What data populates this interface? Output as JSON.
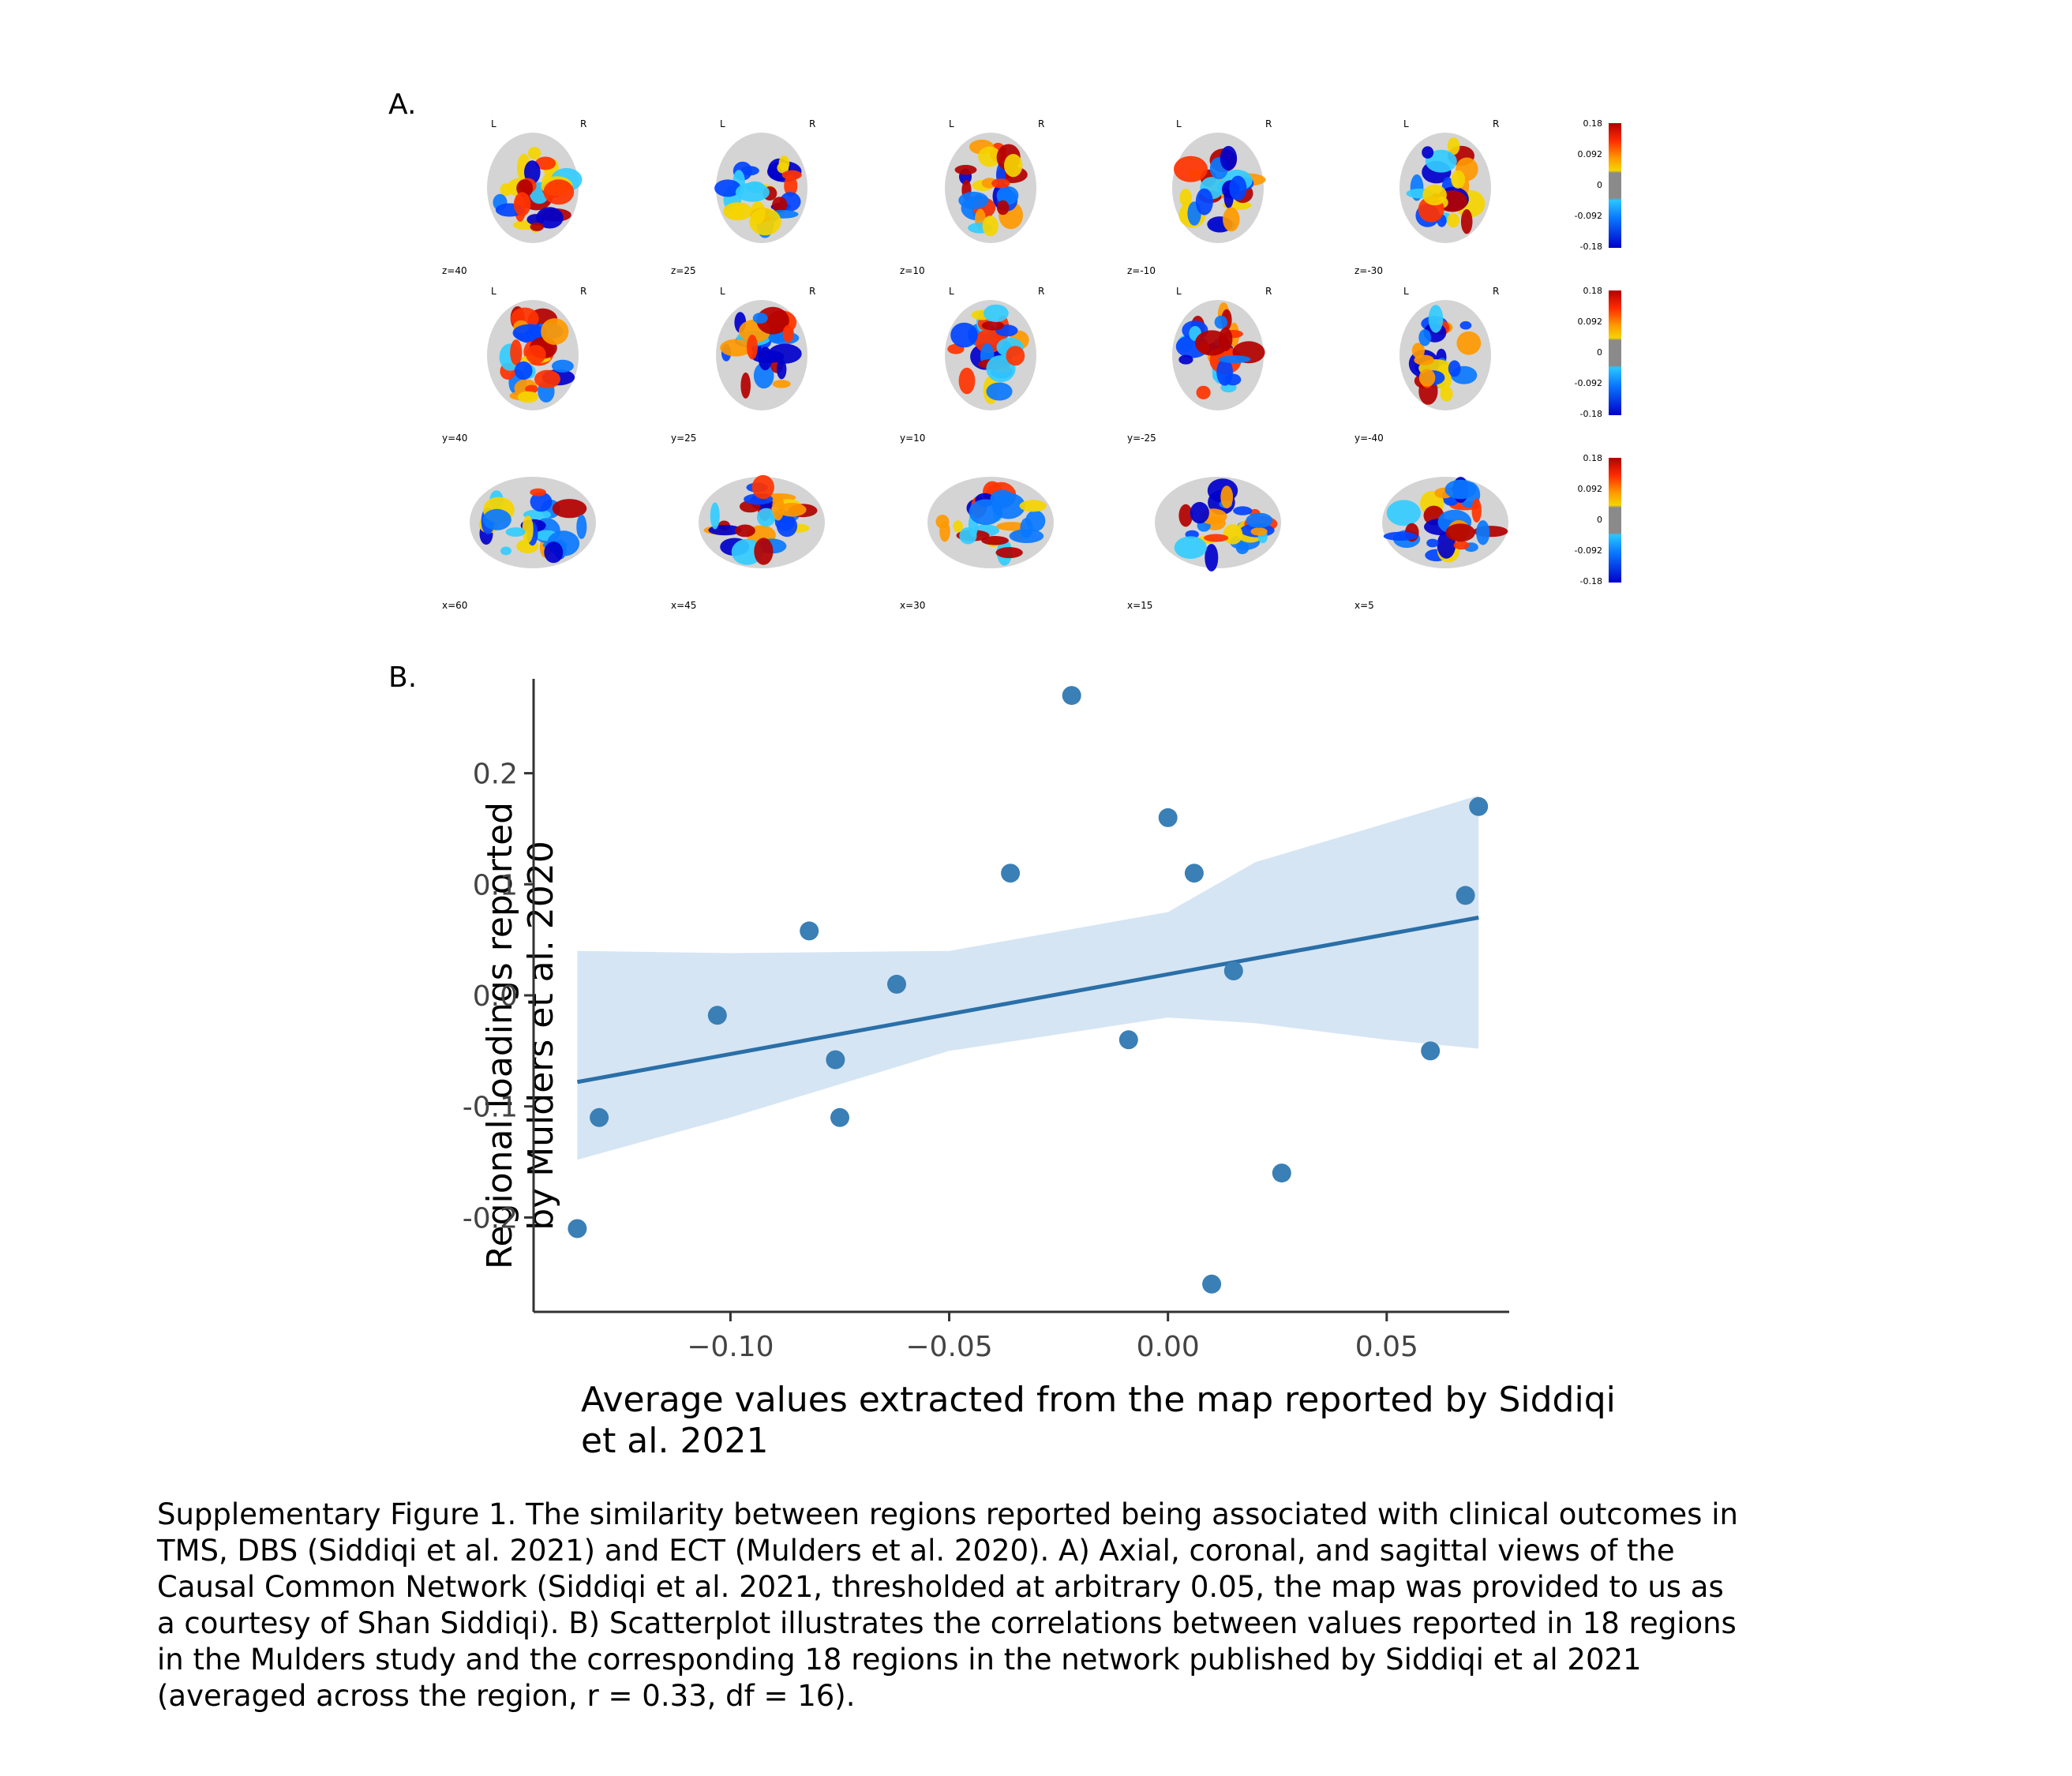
{
  "panel_a": {
    "label": "A.",
    "orientation_left": "L",
    "orientation_right": "R",
    "rows": [
      {
        "view": "axial",
        "slices": [
          "z=40",
          "z=25",
          "z=10",
          "z=-10",
          "z=-30"
        ]
      },
      {
        "view": "coronal",
        "slices": [
          "y=40",
          "y=25",
          "y=10",
          "y=-25",
          "y=-40"
        ]
      },
      {
        "view": "sagittal",
        "slices": [
          "x=60",
          "x=45",
          "x=30",
          "x=15",
          "x=5"
        ]
      }
    ],
    "colorbar_ticks": [
      "0.18",
      "0.092",
      "0",
      "-0.092",
      "-0.18"
    ],
    "colors": {
      "positive_high": "#b30000",
      "positive_mid": "#ff9900",
      "neutral": "#8a8a8a",
      "negative_mid": "#0a78ff",
      "negative_high": "#0000cc",
      "tissue": "#d4d4d4"
    }
  },
  "panel_b": {
    "label": "B.",
    "ylabel_line1": "Regional loadings reported",
    "ylabel_line2": "by Mulders et al. 2020",
    "xlabel_line1": "Average values extracted from the map reported by Siddiqi",
    "xlabel_line2": "et al. 2021"
  },
  "chart_data": {
    "type": "scatter",
    "x": [
      -0.135,
      -0.13,
      -0.103,
      -0.082,
      -0.076,
      -0.075,
      -0.062,
      -0.036,
      -0.022,
      -0.009,
      0.0,
      0.006,
      0.01,
      0.015,
      0.026,
      0.06,
      0.068,
      0.071
    ],
    "y": [
      -0.21,
      -0.11,
      -0.018,
      0.058,
      -0.058,
      -0.11,
      0.01,
      0.11,
      0.27,
      -0.04,
      0.16,
      0.11,
      -0.26,
      0.022,
      -0.16,
      -0.05,
      0.09,
      0.17
    ],
    "regression_line": {
      "x": [
        -0.135,
        0.071
      ],
      "y": [
        -0.078,
        0.07
      ]
    },
    "confidence_band": {
      "x": [
        -0.135,
        -0.1,
        -0.05,
        0.0,
        0.02,
        0.05,
        0.071
      ],
      "upper": [
        0.04,
        0.038,
        0.04,
        0.075,
        0.12,
        0.155,
        0.18
      ],
      "lower": [
        -0.148,
        -0.11,
        -0.05,
        -0.02,
        -0.025,
        -0.04,
        -0.048
      ]
    },
    "xticks": [
      -0.1,
      -0.05,
      0.0,
      0.05
    ],
    "xtick_labels": [
      "−0.10",
      "−0.05",
      "0.00",
      "0.05"
    ],
    "yticks": [
      0.2,
      0.1,
      0.0,
      -0.1,
      -0.2
    ],
    "ytick_labels": [
      "0.2",
      "0.1",
      "0.0",
      "-0.1",
      "-0.2"
    ],
    "xlim": [
      -0.145,
      0.078
    ],
    "ylim": [
      -0.285,
      0.285
    ],
    "xlabel": "Average values extracted from the map reported by Siddiqi et al. 2021",
    "ylabel": "Regional loadings reported by Mulders et al. 2020",
    "point_color": "#3a7fb5",
    "line_color": "#2a6fa8",
    "band_color": "#cfe0f1",
    "grid": false
  },
  "caption": {
    "lines": [
      "Supplementary Figure 1. The similarity between regions reported being associated with clinical outcomes in",
      "TMS, DBS (Siddiqi et al. 2021) and ECT (Mulders et al. 2020). A) Axial, coronal, and sagittal views of the",
      "Causal Common Network (Siddiqi et al. 2021, thresholded at arbitrary 0.05, the map was provided to us as",
      "a courtesy of Shan Siddiqi). B) Scatterplot illustrates the correlations between values reported in 18 regions",
      "in the Mulders study and the corresponding 18 regions in the network published by Siddiqi et al 2021",
      "(averaged across the region, r = 0.33, df = 16)."
    ]
  }
}
